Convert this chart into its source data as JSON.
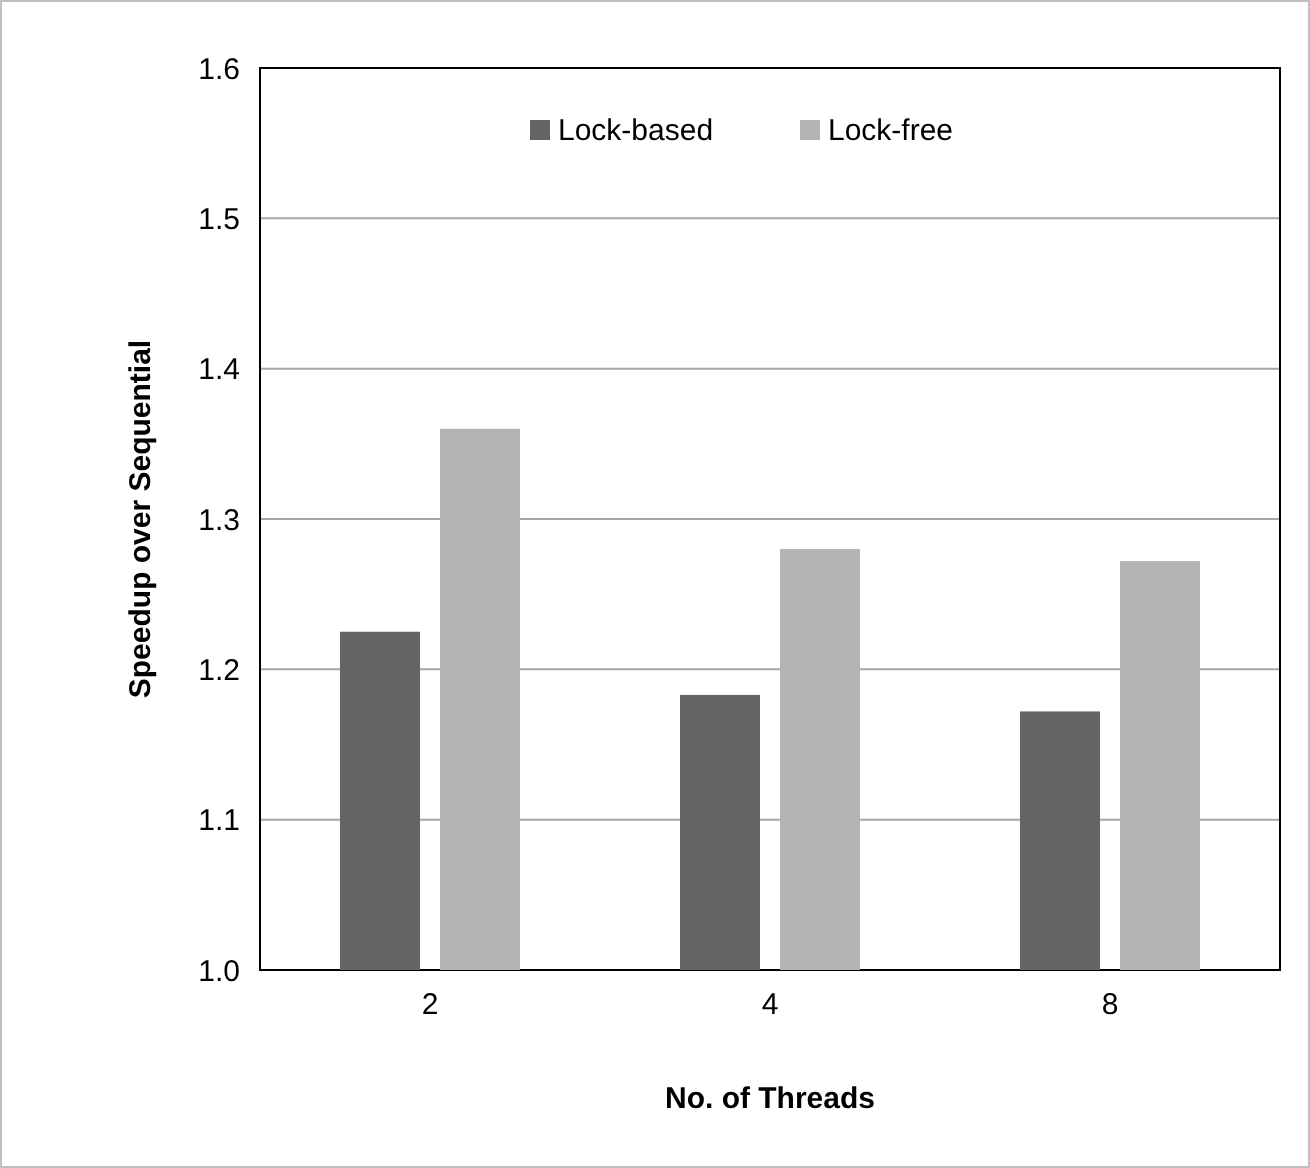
{
  "chart_data": {
    "type": "bar",
    "xlabel": "No. of Threads",
    "ylabel": "Speedup over Sequential",
    "categories": [
      "2",
      "4",
      "8"
    ],
    "series": [
      {
        "name": "Lock-based",
        "color": "#646464",
        "values": [
          1.225,
          1.183,
          1.172
        ]
      },
      {
        "name": "Lock-free",
        "color": "#b3b3b3",
        "values": [
          1.36,
          1.28,
          1.272
        ]
      }
    ],
    "ylim": [
      1.0,
      1.6
    ],
    "yticks": [
      {
        "value": 1.0,
        "label": "1.0"
      },
      {
        "value": 1.1,
        "label": "1.1"
      },
      {
        "value": 1.2,
        "label": "1.2"
      },
      {
        "value": 1.3,
        "label": "1.3"
      },
      {
        "value": 1.4,
        "label": "1.4"
      },
      {
        "value": 1.5,
        "label": "1.5"
      },
      {
        "value": 1.6,
        "label": "1.6"
      }
    ],
    "grid": "y",
    "legend": "top"
  }
}
